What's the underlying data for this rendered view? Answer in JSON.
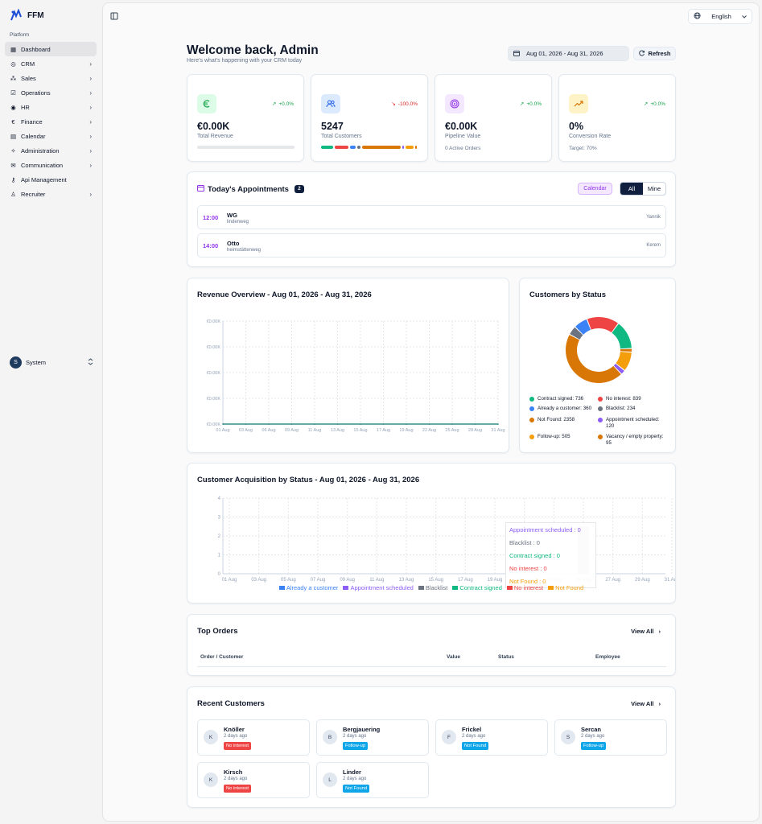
{
  "brand": {
    "name": "FFM"
  },
  "sidebar": {
    "section_label": "Platform",
    "items": [
      {
        "label": "Dashboard",
        "icon": "dashboard-icon",
        "active": true,
        "chevron": false
      },
      {
        "label": "CRM",
        "icon": "crm-icon",
        "chevron": true
      },
      {
        "label": "Sales",
        "icon": "sales-icon",
        "chevron": true
      },
      {
        "label": "Operations",
        "icon": "operations-icon",
        "chevron": true
      },
      {
        "label": "HR",
        "icon": "hr-icon",
        "chevron": true
      },
      {
        "label": "Finance",
        "icon": "euro-icon",
        "chevron": true
      },
      {
        "label": "Calendar",
        "icon": "calendar-icon",
        "chevron": true
      },
      {
        "label": "Administration",
        "icon": "administration-icon",
        "chevron": true
      },
      {
        "label": "Communication",
        "icon": "mail-icon",
        "chevron": true
      },
      {
        "label": "Api Management",
        "icon": "key-icon",
        "chevron": false
      },
      {
        "label": "Recruiter",
        "icon": "user-icon",
        "chevron": true
      }
    ],
    "user": {
      "initial": "S",
      "name": "System"
    }
  },
  "topbar": {
    "language": "English"
  },
  "header": {
    "title": "Welcome back, Admin",
    "subtitle": "Here's what's happening with your CRM today",
    "date_range": "Aug 01, 2026 - Aug 31, 2026",
    "refresh_label": "Refresh"
  },
  "stats": [
    {
      "value": "€0.00K",
      "label": "Total Revenue",
      "trend": "+0.0%",
      "trend_dir": "up",
      "icon": "euro-icon",
      "progress": 0
    },
    {
      "value": "5247",
      "label": "Total Customers",
      "trend": "-100.0%",
      "trend_dir": "down",
      "icon": "users-icon"
    },
    {
      "value": "€0.00K",
      "label": "Pipeline Value",
      "trend": "+0.0%",
      "trend_dir": "up",
      "icon": "target-icon",
      "sub": "0 Active Orders"
    },
    {
      "value": "0%",
      "label": "Conversion Rate",
      "trend": "+0.0%",
      "trend_dir": "up",
      "icon": "trending-up-icon",
      "sub": "Target: 70%"
    }
  ],
  "appointments": {
    "title": "Today's Appointments",
    "count": "2",
    "calendar_label": "Calendar",
    "filter_all": "All",
    "filter_mine": "Mine",
    "items": [
      {
        "time": "12:00",
        "name": "WG",
        "address": "lindenweg",
        "employee": "Yannik"
      },
      {
        "time": "14:00",
        "name": "Otto",
        "address": "heimstättenweg",
        "employee": "Kerem"
      }
    ]
  },
  "revenue_chart": {
    "title": "Revenue Overview - Aug 01, 2026 - Aug 31, 2026",
    "y_ticks": [
      "€0.00K",
      "€0.00K",
      "€0.00K",
      "€0.00K",
      "€0.00K"
    ],
    "x_ticks": [
      "01 Aug",
      "03 Aug",
      "06 Aug",
      "09 Aug",
      "11 Aug",
      "13 Aug",
      "15 Aug",
      "17 Aug",
      "19 Aug",
      "22 Aug",
      "25 Aug",
      "28 Aug",
      "31 Aug"
    ]
  },
  "status_chart": {
    "title": "Customers by Status",
    "legend": [
      {
        "label": "Contract signed: 736",
        "color": "#10b981"
      },
      {
        "label": "No interest: 839",
        "color": "#ef4444"
      },
      {
        "label": "Already a customer: 360",
        "color": "#3b82f6"
      },
      {
        "label": "Blacklist: 234",
        "color": "#6b7280"
      },
      {
        "label": "Not Found: 2358",
        "color": "#d97706"
      },
      {
        "label": "Appointment scheduled: 120",
        "color": "#8b5cf6"
      },
      {
        "label": "Follow-up: 505",
        "color": "#f59e0b"
      },
      {
        "label": "Vacancy / empty property: 95",
        "color": "#d97706"
      }
    ]
  },
  "acquisition_chart": {
    "title": "Customer Acquisition by Status - Aug 01, 2026 - Aug 31, 2026",
    "y_ticks": [
      "4",
      "3",
      "2",
      "1",
      "0"
    ],
    "x_ticks": [
      "01 Aug",
      "03 Aug",
      "05 Aug",
      "07 Aug",
      "09 Aug",
      "11 Aug",
      "13 Aug",
      "15 Aug",
      "17 Aug",
      "19 Aug",
      "21 Aug",
      "23 Aug",
      "25 Aug",
      "27 Aug",
      "29 Aug",
      "31 Aug"
    ],
    "tooltip": [
      {
        "label": "Appointment scheduled : 0",
        "color": "#8b5cf6"
      },
      {
        "label": "Blacklist : 0",
        "color": "#6b7280"
      },
      {
        "label": "Contract signed : 0",
        "color": "#10b981"
      },
      {
        "label": "No interest : 0",
        "color": "#ef4444"
      },
      {
        "label": "Not Found : 0",
        "color": "#f59e0b"
      }
    ],
    "legend": [
      {
        "label": "Already a customer",
        "color": "#3b82f6"
      },
      {
        "label": "Appointment scheduled",
        "color": "#8b5cf6"
      },
      {
        "label": "Blacklist",
        "color": "#6b7280"
      },
      {
        "label": "Contract signed",
        "color": "#10b981"
      },
      {
        "label": "No interest",
        "color": "#ef4444"
      },
      {
        "label": "Not Found",
        "color": "#f59e0b"
      }
    ]
  },
  "top_orders": {
    "title": "Top Orders",
    "view_all": "View All",
    "columns": [
      "Order / Customer",
      "Value",
      "Status",
      "Employee"
    ]
  },
  "recent_customers": {
    "title": "Recent Customers",
    "view_all": "View All",
    "items": [
      {
        "initial": "K",
        "name": "Knöller",
        "date": "2 days ago",
        "status": "No interest",
        "color": "#ef4444"
      },
      {
        "initial": "B",
        "name": "Bergjauering",
        "date": "2 days ago",
        "status": "Follow-up",
        "color": "#0ea5e9"
      },
      {
        "initial": "F",
        "name": "Frickel",
        "date": "2 days ago",
        "status": "Not Found",
        "color": "#0ea5e9"
      },
      {
        "initial": "S",
        "name": "Sercan",
        "date": "2 days ago",
        "status": "Follow-up",
        "color": "#0ea5e9"
      },
      {
        "initial": "K",
        "name": "Kirsch",
        "date": "2 days ago",
        "status": "No interest",
        "color": "#ef4444"
      },
      {
        "initial": "L",
        "name": "Linder",
        "date": "2 days ago",
        "status": "Not Found",
        "color": "#0ea5e9"
      }
    ]
  },
  "chart_data": [
    {
      "type": "line",
      "title": "Revenue Overview - Aug 01, 2026 - Aug 31, 2026",
      "x": [
        "01 Aug",
        "03 Aug",
        "06 Aug",
        "09 Aug",
        "11 Aug",
        "13 Aug",
        "15 Aug",
        "17 Aug",
        "19 Aug",
        "22 Aug",
        "25 Aug",
        "28 Aug",
        "31 Aug"
      ],
      "values": [
        0,
        0,
        0,
        0,
        0,
        0,
        0,
        0,
        0,
        0,
        0,
        0,
        0
      ],
      "grid": true
    },
    {
      "type": "pie",
      "title": "Customers by Status",
      "categories": [
        "Contract signed",
        "No interest",
        "Already a customer",
        "Blacklist",
        "Not Found",
        "Appointment scheduled",
        "Follow-up",
        "Vacancy / empty property"
      ],
      "values": [
        736,
        839,
        360,
        234,
        2358,
        120,
        505,
        95
      ],
      "legend": "bottom"
    },
    {
      "type": "bar",
      "title": "Customer Acquisition by Status - Aug 01, 2026 - Aug 31, 2026",
      "categories": [
        "01 Aug",
        "03 Aug",
        "05 Aug",
        "07 Aug",
        "09 Aug",
        "11 Aug",
        "13 Aug",
        "15 Aug",
        "17 Aug",
        "19 Aug",
        "21 Aug",
        "23 Aug",
        "25 Aug",
        "27 Aug",
        "29 Aug",
        "31 Aug"
      ],
      "ylim": [
        0,
        4
      ],
      "series": [
        {
          "name": "Already a customer",
          "values": [
            0,
            0,
            0,
            0,
            0,
            0,
            0,
            0,
            0,
            0,
            0,
            0,
            0,
            0,
            0,
            0
          ]
        },
        {
          "name": "Appointment scheduled",
          "values": [
            0,
            0,
            0,
            0,
            0,
            0,
            0,
            0,
            0,
            0,
            0,
            0,
            0,
            0,
            0,
            0
          ]
        },
        {
          "name": "Blacklist",
          "values": [
            0,
            0,
            0,
            0,
            0,
            0,
            0,
            0,
            0,
            0,
            0,
            0,
            0,
            0,
            0,
            0
          ]
        },
        {
          "name": "Contract signed",
          "values": [
            0,
            0,
            0,
            0,
            0,
            0,
            0,
            0,
            0,
            0,
            0,
            0,
            0,
            0,
            0,
            0
          ]
        },
        {
          "name": "No interest",
          "values": [
            0,
            0,
            0,
            0,
            0,
            0,
            0,
            0,
            0,
            0,
            0,
            0,
            0,
            0,
            0,
            0
          ]
        },
        {
          "name": "Not Found",
          "values": [
            0,
            0,
            0,
            0,
            0,
            0,
            0,
            0,
            0,
            0,
            0,
            0,
            0,
            0,
            0,
            0
          ]
        }
      ],
      "legend": "bottom"
    }
  ]
}
